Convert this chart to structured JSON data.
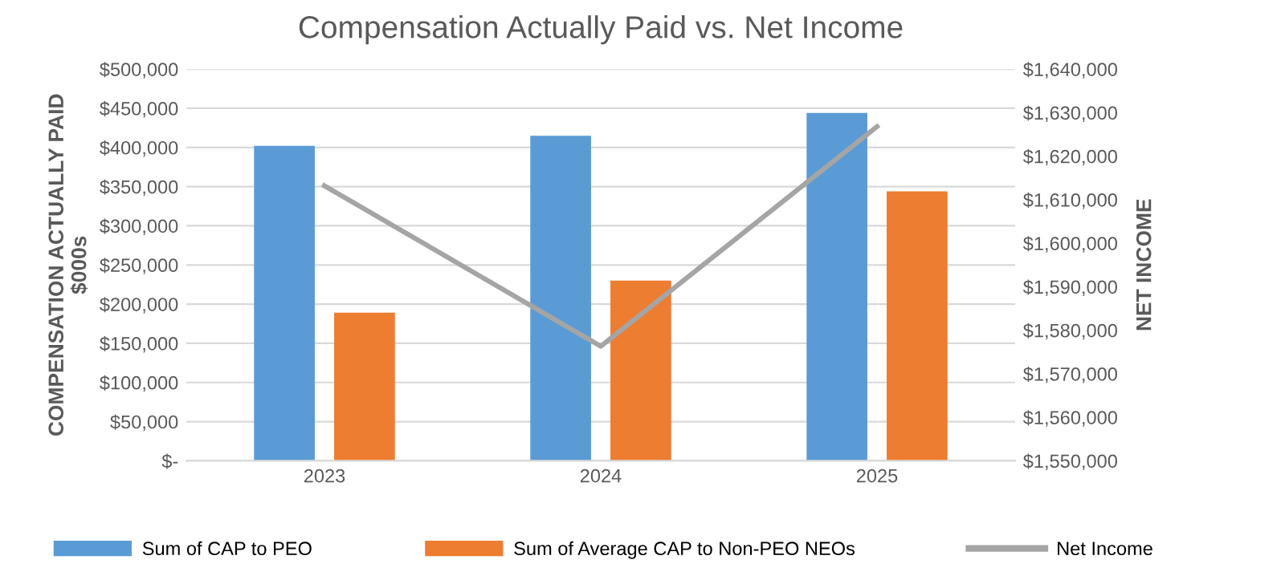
{
  "chart_data": {
    "type": "bar",
    "title": "Compensation Actually Paid vs. Net Income",
    "ylabel": "COMPENSATION ACTUALLY PAID\n$000s",
    "y2label": "NET INCOME",
    "categories": [
      "2023",
      "2024",
      "2025"
    ],
    "series": [
      {
        "name": "Sum of CAP to PEO",
        "color": "#5b9bd5",
        "values": [
          402000,
          415000,
          444000
        ]
      },
      {
        "name": "Sum of Average CAP to Non-PEO NEOs",
        "color": "#ed7d31",
        "values": [
          189000,
          230000,
          344000
        ]
      },
      {
        "name": "Net Income",
        "type": "line",
        "axis": "y2",
        "color": "#a5a5a5",
        "values": [
          1613200,
          1576300,
          1626800
        ]
      }
    ],
    "ylim": [
      0,
      500000
    ],
    "yticks": [
      {
        "value": 0,
        "label": "$-"
      },
      {
        "value": 50000,
        "label": "$50,000"
      },
      {
        "value": 100000,
        "label": "$100,000"
      },
      {
        "value": 150000,
        "label": "$150,000"
      },
      {
        "value": 200000,
        "label": "$200,000"
      },
      {
        "value": 250000,
        "label": "$250,000"
      },
      {
        "value": 300000,
        "label": "$300,000"
      },
      {
        "value": 350000,
        "label": "$350,000"
      },
      {
        "value": 400000,
        "label": "$400,000"
      },
      {
        "value": 450000,
        "label": "$450,000"
      },
      {
        "value": 500000,
        "label": "$500,000"
      }
    ],
    "y2lim": [
      1550000,
      1640000
    ],
    "y2ticks": [
      {
        "value": 1550000,
        "label": "$1,550,000"
      },
      {
        "value": 1560000,
        "label": "$1,560,000"
      },
      {
        "value": 1570000,
        "label": "$1,570,000"
      },
      {
        "value": 1580000,
        "label": "$1,580,000"
      },
      {
        "value": 1590000,
        "label": "$1,590,000"
      },
      {
        "value": 1600000,
        "label": "$1,600,000"
      },
      {
        "value": 1610000,
        "label": "$1,610,000"
      },
      {
        "value": 1620000,
        "label": "$1,620,000"
      },
      {
        "value": 1630000,
        "label": "$1,630,000"
      },
      {
        "value": 1640000,
        "label": "$1,640,000"
      }
    ],
    "grid": "y",
    "legend": "bottom"
  }
}
